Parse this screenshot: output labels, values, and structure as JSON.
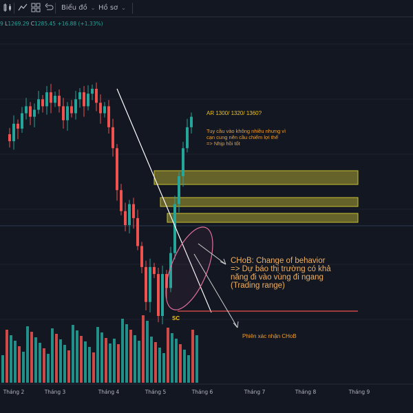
{
  "toolbar": {
    "menu_chart": "Biểu đồ",
    "menu_profile": "Hồ sơ",
    "icons": [
      "candles-icon",
      "indicators-icon",
      "layout-grid-icon",
      "undo-icon"
    ]
  },
  "ohlc": {
    "open_tail": "9",
    "low_label": "L",
    "low": "1269.29",
    "close_label": "C",
    "close": "1285.45",
    "change": "+16.88 (+1.33%)"
  },
  "annotations": {
    "ar": "AR 1300/ 1320/ 1360?",
    "tuy_cau": "Tuy cầu vào không nhiều nhưng vì\ncạn cung nên cầu chiếm lợi thế\n=> Nhịp hồi tốt",
    "choch": "CHoB: Change of behavior\n=> Dự báo thị trường có khả\nnăng đi vào vùng đi ngang\n(Trading range)",
    "sc": "SC",
    "phien": "Phiên xác nhận CHoB"
  },
  "chart_data": {
    "type": "candlestick",
    "title": "",
    "x_ticks": [
      "Tháng 2",
      "Tháng 3",
      "Tháng 4",
      "Tháng 5",
      "Tháng 6",
      "Tháng 7",
      "Tháng 8",
      "Tháng 9"
    ],
    "last_close": 1285.45,
    "last_low": 1269.29,
    "last_change": 16.88,
    "last_change_pct": 1.33,
    "approximate_ohlc_path": [
      1260,
      1250,
      1275,
      1268,
      1290,
      1300,
      1285,
      1295,
      1310,
      1300,
      1320,
      1305,
      1315,
      1300,
      1280,
      1300,
      1290,
      1310,
      1320,
      1300,
      1318,
      1325,
      1305,
      1290,
      1300,
      1270,
      1240,
      1180,
      1150,
      1130,
      1160,
      1140,
      1100,
      1070,
      1020,
      1070,
      1060,
      1000,
      1060,
      1040,
      1090,
      1160,
      1200,
      1240,
      1270,
      1285
    ],
    "resistance_zones": [
      1310,
      1330,
      1360
    ],
    "support_level": 1000,
    "colors": {
      "up": "#26a69a",
      "down": "#ef5350",
      "zone": "#c9c234",
      "trend": "#ffffff",
      "ellipse": "#e0709a"
    }
  }
}
